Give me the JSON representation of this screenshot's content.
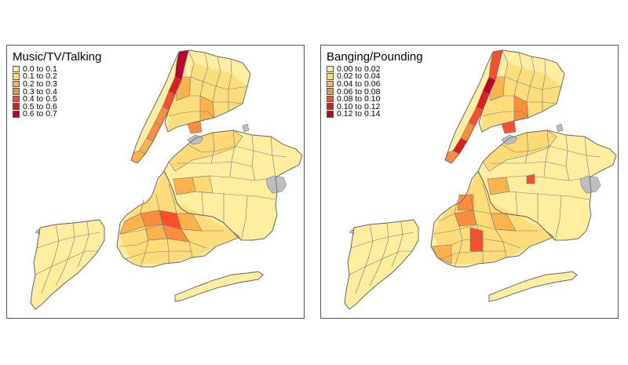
{
  "maps": [
    {
      "id": "music",
      "title": "Music/TV/Talking",
      "legend": [
        {
          "label": "0.0 to 0.1",
          "color": "#FFEDA0"
        },
        {
          "label": "0.1 to 0.2",
          "color": "#FED976"
        },
        {
          "label": "0.2 to 0.3",
          "color": "#FEB24C"
        },
        {
          "label": "0.3 to 0.4",
          "color": "#FD8D3C"
        },
        {
          "label": "0.4 to 0.5",
          "color": "#FC4E2A"
        },
        {
          "label": "0.5 to 0.6",
          "color": "#E31A1C"
        },
        {
          "label": "0.6 to 0.7",
          "color": "#BD0026"
        }
      ]
    },
    {
      "id": "banging",
      "title": "Banging/Pounding",
      "legend": [
        {
          "label": "0.00 to 0.02",
          "color": "#FFEDA0"
        },
        {
          "label": "0.02 to 0.04",
          "color": "#FED976"
        },
        {
          "label": "0.04 to 0.06",
          "color": "#FEB24C"
        },
        {
          "label": "0.06 to 0.08",
          "color": "#FD8D3C"
        },
        {
          "label": "0.08 to 0.10",
          "color": "#FC4E2A"
        },
        {
          "label": "0.10 to 0.12",
          "color": "#E31A1C"
        },
        {
          "label": "0.12 to 0.14",
          "color": "#BD0026"
        }
      ]
    }
  ],
  "colors": {
    "no_data": "#BEBEBE",
    "border": "#777777",
    "frame": "#555555"
  }
}
